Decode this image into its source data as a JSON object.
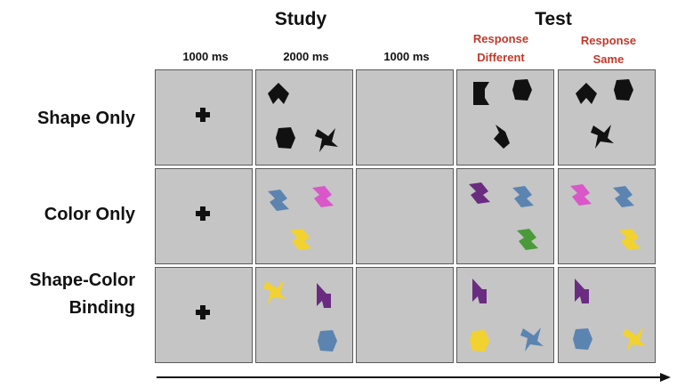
{
  "phases": {
    "study": "Study",
    "test": "Test"
  },
  "timings": [
    "1000 ms",
    "2000 ms",
    "1000 ms"
  ],
  "responses": {
    "different": [
      "Response",
      "Different"
    ],
    "same": [
      "Response",
      "Same"
    ]
  },
  "rows": [
    {
      "label_lines": [
        "Shape Only"
      ]
    },
    {
      "label_lines": [
        "Color Only"
      ]
    },
    {
      "label_lines": [
        "Shape-Color",
        "Binding"
      ]
    }
  ],
  "colors": {
    "panel_bg": "#c5c5c5",
    "panel_border": "#5a5a5a",
    "response_text": "#c0392b",
    "black_shape": "#111111",
    "blue": "#5b84b1",
    "magenta": "#d957c9",
    "yellow": "#f2d230",
    "purple": "#6a2c80",
    "green": "#4a9a3a"
  },
  "panels": [
    {
      "row": 0,
      "col": 0,
      "content": "fixation-cross"
    },
    {
      "row": 0,
      "col": 1,
      "shapes": [
        {
          "kind": "arrow-hex",
          "color": "black_shape"
        },
        {
          "kind": "hexagon",
          "color": "black_shape"
        },
        {
          "kind": "bolt",
          "color": "black_shape"
        }
      ]
    },
    {
      "row": 0,
      "col": 2,
      "content": "blank"
    },
    {
      "row": 0,
      "col": 3,
      "shapes": [
        {
          "kind": "bracket",
          "color": "black_shape"
        },
        {
          "kind": "hexagon",
          "color": "black_shape"
        },
        {
          "kind": "diamond-cut",
          "color": "black_shape"
        }
      ]
    },
    {
      "row": 0,
      "col": 4,
      "shapes": [
        {
          "kind": "arrow-hex",
          "color": "black_shape"
        },
        {
          "kind": "hexagon",
          "color": "black_shape"
        },
        {
          "kind": "bolt",
          "color": "black_shape"
        }
      ]
    },
    {
      "row": 1,
      "col": 0,
      "content": "fixation-cross"
    },
    {
      "row": 1,
      "col": 1,
      "shapes": [
        {
          "kind": "zigzag",
          "color": "blue"
        },
        {
          "kind": "zigzag",
          "color": "magenta"
        },
        {
          "kind": "zigzag",
          "color": "yellow"
        }
      ]
    },
    {
      "row": 1,
      "col": 2,
      "content": "blank"
    },
    {
      "row": 1,
      "col": 3,
      "shapes": [
        {
          "kind": "zigzag",
          "color": "purple"
        },
        {
          "kind": "zigzag",
          "color": "blue"
        },
        {
          "kind": "zigzag",
          "color": "green"
        }
      ]
    },
    {
      "row": 1,
      "col": 4,
      "shapes": [
        {
          "kind": "zigzag",
          "color": "magenta"
        },
        {
          "kind": "zigzag",
          "color": "blue"
        },
        {
          "kind": "zigzag",
          "color": "yellow"
        }
      ]
    },
    {
      "row": 2,
      "col": 0,
      "content": "fixation-cross"
    },
    {
      "row": 2,
      "col": 1,
      "shapes": [
        {
          "kind": "bolt",
          "color": "yellow"
        },
        {
          "kind": "flag",
          "color": "purple"
        },
        {
          "kind": "hexagon",
          "color": "blue"
        }
      ]
    },
    {
      "row": 2,
      "col": 2,
      "content": "blank"
    },
    {
      "row": 2,
      "col": 3,
      "shapes": [
        {
          "kind": "flag",
          "color": "purple"
        },
        {
          "kind": "hexagon",
          "color": "yellow"
        },
        {
          "kind": "bolt",
          "color": "blue"
        }
      ]
    },
    {
      "row": 2,
      "col": 4,
      "shapes": [
        {
          "kind": "flag",
          "color": "purple"
        },
        {
          "kind": "hexagon",
          "color": "blue"
        },
        {
          "kind": "bolt",
          "color": "yellow"
        }
      ]
    }
  ]
}
